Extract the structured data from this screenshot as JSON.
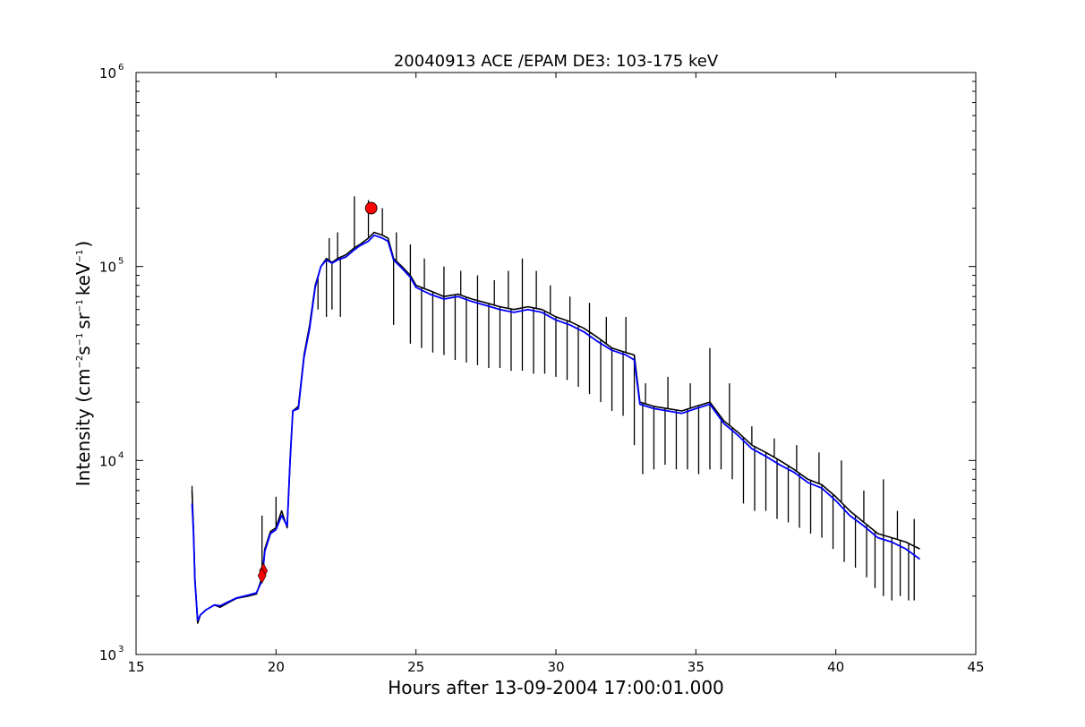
{
  "chart_data": {
    "type": "line",
    "title": "20040913 ACE /EPAM DE3: 103-175 keV",
    "xlabel": "Hours after 13-09-2004 17:00:01.000",
    "ylabel": {
      "prefix": "Intensity (cm",
      "exp1": "−2",
      "s": "s",
      "exp2": "−1",
      "sr": "sr",
      "exp3": "−1",
      "kev": "keV",
      "exp4": "−1",
      "suffix": ")"
    },
    "xlim": [
      15,
      45
    ],
    "ylim": [
      1000,
      1000000
    ],
    "yscale": "log",
    "grid": false,
    "x_ticks": [
      "15",
      "20",
      "25",
      "30",
      "35",
      "40",
      "45"
    ],
    "y_ticks": [
      {
        "base": "10",
        "exp": "3"
      },
      {
        "base": "10",
        "exp": "4"
      },
      {
        "base": "10",
        "exp": "5"
      },
      {
        "base": "10",
        "exp": "6"
      }
    ],
    "series": [
      {
        "color": "#000000",
        "style": "raw",
        "x": [
          17.0,
          17.05,
          17.1,
          17.2,
          17.3,
          17.5,
          17.8,
          18.0,
          18.3,
          18.6,
          19.0,
          19.3,
          19.5,
          19.6,
          19.8,
          20.0,
          20.2,
          20.4,
          20.5,
          20.6,
          20.8,
          21.0,
          21.2,
          21.4,
          21.6,
          21.8,
          22.0,
          22.2,
          22.5,
          22.8,
          23.0,
          23.3,
          23.5,
          23.8,
          24.0,
          24.2,
          24.5,
          24.8,
          25.0,
          25.5,
          26.0,
          26.5,
          27.0,
          27.5,
          28.0,
          28.5,
          29.0,
          29.5,
          30.0,
          30.5,
          31.0,
          31.5,
          32.0,
          32.5,
          32.8,
          33.0,
          33.5,
          34.0,
          34.5,
          35.0,
          35.5,
          36.0,
          36.5,
          37.0,
          37.5,
          38.0,
          38.5,
          39.0,
          39.5,
          40.0,
          40.5,
          41.0,
          41.5,
          42.0,
          42.5,
          43.0
        ],
        "y": [
          7000,
          4500,
          2500,
          1450,
          1600,
          1700,
          1800,
          1750,
          1850,
          1950,
          2000,
          2050,
          2500,
          3500,
          4300,
          4500,
          5500,
          4500,
          10000,
          18000,
          19000,
          35000,
          50000,
          80000,
          100000,
          110000,
          105000,
          110000,
          115000,
          125000,
          130000,
          140000,
          150000,
          145000,
          140000,
          110000,
          100000,
          90000,
          80000,
          75000,
          70000,
          72000,
          68000,
          65000,
          62000,
          60000,
          62000,
          60000,
          55000,
          52000,
          48000,
          43000,
          38000,
          36000,
          35000,
          20000,
          19000,
          18500,
          18000,
          19000,
          20000,
          16000,
          14000,
          12000,
          11000,
          10000,
          9000,
          8000,
          7500,
          6500,
          5500,
          4800,
          4200,
          4000,
          3800,
          3500
        ]
      },
      {
        "color": "#0000ff",
        "style": "smoothed",
        "x": [
          17.0,
          17.05,
          17.1,
          17.2,
          17.3,
          17.5,
          17.8,
          18.0,
          18.3,
          18.6,
          19.0,
          19.3,
          19.5,
          19.6,
          19.8,
          20.0,
          20.2,
          20.4,
          20.5,
          20.6,
          20.8,
          21.0,
          21.2,
          21.4,
          21.6,
          21.8,
          22.0,
          22.2,
          22.5,
          22.8,
          23.0,
          23.3,
          23.5,
          23.8,
          24.0,
          24.2,
          24.5,
          24.8,
          25.0,
          25.5,
          26.0,
          26.5,
          27.0,
          27.5,
          28.0,
          28.5,
          29.0,
          29.5,
          30.0,
          30.5,
          31.0,
          31.5,
          32.0,
          32.5,
          32.8,
          33.0,
          33.5,
          34.0,
          34.5,
          35.0,
          35.5,
          36.0,
          36.5,
          37.0,
          37.5,
          38.0,
          38.5,
          39.0,
          39.5,
          40.0,
          40.5,
          41.0,
          41.5,
          42.0,
          42.5,
          43.0
        ],
        "y": [
          6000,
          4300,
          2400,
          1500,
          1600,
          1700,
          1800,
          1780,
          1870,
          1960,
          2020,
          2080,
          2400,
          3400,
          4200,
          4400,
          5200,
          4600,
          9800,
          18000,
          18500,
          34000,
          48000,
          78000,
          100000,
          108000,
          104000,
          108000,
          112000,
          122000,
          128000,
          135000,
          145000,
          140000,
          135000,
          108000,
          98000,
          88000,
          78000,
          72000,
          68000,
          70000,
          66000,
          63000,
          60000,
          58000,
          60000,
          58000,
          53000,
          50000,
          46000,
          41000,
          37000,
          35000,
          33000,
          19500,
          18500,
          18000,
          17500,
          18500,
          19500,
          15500,
          13500,
          11500,
          10500,
          9500,
          8700,
          7700,
          7200,
          6200,
          5200,
          4600,
          4000,
          3800,
          3500,
          3100
        ]
      }
    ],
    "markers": [
      {
        "shape": "diamond",
        "color": "#ff0000",
        "x": 19.55,
        "y": 2700
      },
      {
        "shape": "diamond",
        "color": "#ff0000",
        "x": 19.5,
        "y": 2550
      },
      {
        "shape": "circle",
        "color": "#ff0000",
        "x": 23.4,
        "y": 200000
      }
    ],
    "spikes": {
      "color": "#000000",
      "down": [
        {
          "x": 21.5,
          "y": 60000
        },
        {
          "x": 21.8,
          "y": 55000
        },
        {
          "x": 22.0,
          "y": 60000
        },
        {
          "x": 22.3,
          "y": 55000
        },
        {
          "x": 24.2,
          "y": 50000
        },
        {
          "x": 24.8,
          "y": 40000
        },
        {
          "x": 25.2,
          "y": 38000
        },
        {
          "x": 25.6,
          "y": 36000
        },
        {
          "x": 26.0,
          "y": 35000
        },
        {
          "x": 26.4,
          "y": 33000
        },
        {
          "x": 26.8,
          "y": 32000
        },
        {
          "x": 27.2,
          "y": 31000
        },
        {
          "x": 27.6,
          "y": 30000
        },
        {
          "x": 28.0,
          "y": 30000
        },
        {
          "x": 28.4,
          "y": 29000
        },
        {
          "x": 28.8,
          "y": 29000
        },
        {
          "x": 29.2,
          "y": 28000
        },
        {
          "x": 29.6,
          "y": 28000
        },
        {
          "x": 30.0,
          "y": 27000
        },
        {
          "x": 30.4,
          "y": 26000
        },
        {
          "x": 30.8,
          "y": 24000
        },
        {
          "x": 31.2,
          "y": 22000
        },
        {
          "x": 31.6,
          "y": 20000
        },
        {
          "x": 32.0,
          "y": 18000
        },
        {
          "x": 32.4,
          "y": 17000
        },
        {
          "x": 32.8,
          "y": 12000
        },
        {
          "x": 33.1,
          "y": 8500
        },
        {
          "x": 33.5,
          "y": 9000
        },
        {
          "x": 33.9,
          "y": 9500
        },
        {
          "x": 34.3,
          "y": 9000
        },
        {
          "x": 34.7,
          "y": 9000
        },
        {
          "x": 35.1,
          "y": 8500
        },
        {
          "x": 35.5,
          "y": 9000
        },
        {
          "x": 35.9,
          "y": 9000
        },
        {
          "x": 36.3,
          "y": 8000
        },
        {
          "x": 36.7,
          "y": 6000
        },
        {
          "x": 37.1,
          "y": 5500
        },
        {
          "x": 37.5,
          "y": 5500
        },
        {
          "x": 37.9,
          "y": 5000
        },
        {
          "x": 38.3,
          "y": 4800
        },
        {
          "x": 38.7,
          "y": 4500
        },
        {
          "x": 39.1,
          "y": 4200
        },
        {
          "x": 39.5,
          "y": 4000
        },
        {
          "x": 39.9,
          "y": 3500
        },
        {
          "x": 40.3,
          "y": 3000
        },
        {
          "x": 40.7,
          "y": 2800
        },
        {
          "x": 41.1,
          "y": 2500
        },
        {
          "x": 41.4,
          "y": 2200
        },
        {
          "x": 41.7,
          "y": 2000
        },
        {
          "x": 42.0,
          "y": 1900
        },
        {
          "x": 42.3,
          "y": 2000
        },
        {
          "x": 42.6,
          "y": 1900
        },
        {
          "x": 42.8,
          "y": 1900
        }
      ],
      "up": [
        {
          "x": 17.0,
          "y": 7400
        },
        {
          "x": 19.5,
          "y": 5200
        },
        {
          "x": 20.0,
          "y": 6500
        },
        {
          "x": 21.9,
          "y": 140000
        },
        {
          "x": 22.2,
          "y": 150000
        },
        {
          "x": 22.8,
          "y": 230000
        },
        {
          "x": 23.3,
          "y": 220000
        },
        {
          "x": 23.8,
          "y": 200000
        },
        {
          "x": 24.3,
          "y": 150000
        },
        {
          "x": 24.8,
          "y": 130000
        },
        {
          "x": 25.3,
          "y": 110000
        },
        {
          "x": 26.0,
          "y": 100000
        },
        {
          "x": 26.6,
          "y": 95000
        },
        {
          "x": 27.2,
          "y": 90000
        },
        {
          "x": 27.8,
          "y": 85000
        },
        {
          "x": 28.3,
          "y": 95000
        },
        {
          "x": 28.8,
          "y": 110000
        },
        {
          "x": 29.3,
          "y": 95000
        },
        {
          "x": 29.8,
          "y": 80000
        },
        {
          "x": 30.5,
          "y": 70000
        },
        {
          "x": 31.2,
          "y": 65000
        },
        {
          "x": 31.8,
          "y": 55000
        },
        {
          "x": 32.5,
          "y": 55000
        },
        {
          "x": 33.2,
          "y": 25000
        },
        {
          "x": 34.0,
          "y": 27000
        },
        {
          "x": 34.8,
          "y": 25000
        },
        {
          "x": 35.5,
          "y": 38000
        },
        {
          "x": 36.2,
          "y": 25000
        },
        {
          "x": 37.0,
          "y": 15000
        },
        {
          "x": 37.8,
          "y": 13000
        },
        {
          "x": 38.6,
          "y": 12000
        },
        {
          "x": 39.4,
          "y": 11000
        },
        {
          "x": 40.2,
          "y": 10000
        },
        {
          "x": 41.0,
          "y": 7000
        },
        {
          "x": 41.7,
          "y": 8000
        },
        {
          "x": 42.2,
          "y": 5500
        },
        {
          "x": 42.8,
          "y": 5000
        }
      ]
    }
  }
}
